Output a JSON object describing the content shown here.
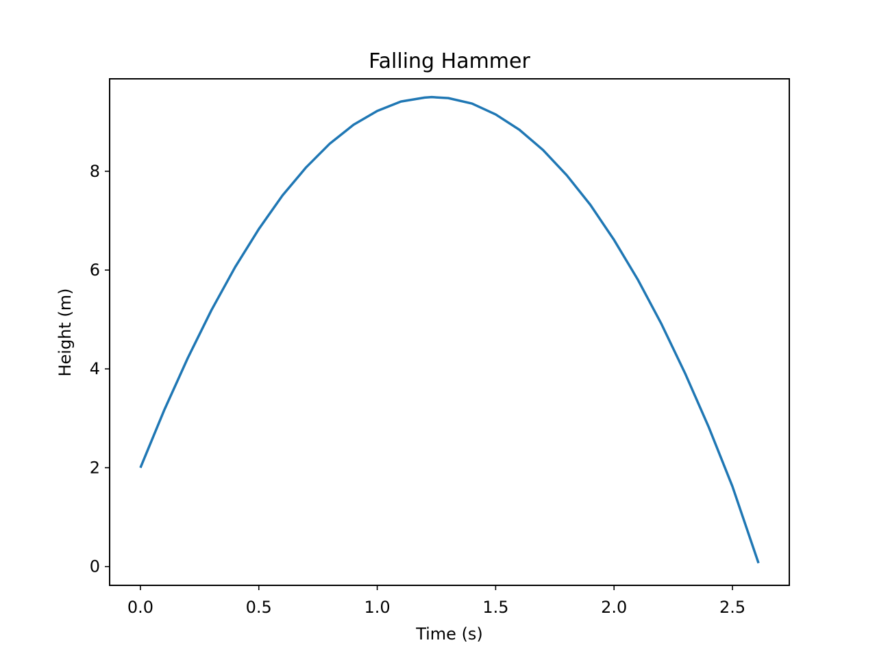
{
  "chart_data": {
    "type": "line",
    "title": "Falling Hammer",
    "xlabel": "Time (s)",
    "ylabel": "Height (m)",
    "xlim": [
      -0.13,
      2.74
    ],
    "ylim": [
      -0.38,
      9.87
    ],
    "xticks": [
      {
        "value": 0.0,
        "label": "0.0"
      },
      {
        "value": 0.5,
        "label": "0.5"
      },
      {
        "value": 1.0,
        "label": "1.0"
      },
      {
        "value": 1.5,
        "label": "1.5"
      },
      {
        "value": 2.0,
        "label": "2.0"
      },
      {
        "value": 2.5,
        "label": "2.5"
      }
    ],
    "yticks": [
      {
        "value": 0,
        "label": "0"
      },
      {
        "value": 2,
        "label": "2"
      },
      {
        "value": 4,
        "label": "4"
      },
      {
        "value": 6,
        "label": "6"
      },
      {
        "value": 8,
        "label": "8"
      }
    ],
    "grid": false,
    "series": [
      {
        "color": "#1f77b4",
        "x": [
          0.0,
          0.1,
          0.2,
          0.3,
          0.4,
          0.5,
          0.6,
          0.7,
          0.8,
          0.9,
          1.0,
          1.1,
          1.2,
          1.23,
          1.3,
          1.4,
          1.5,
          1.6,
          1.7,
          1.8,
          1.9,
          2.0,
          2.1,
          2.2,
          2.3,
          2.4,
          2.5,
          2.61
        ],
        "y": [
          2.0,
          3.16,
          4.22,
          5.19,
          6.06,
          6.83,
          7.51,
          8.08,
          8.56,
          8.94,
          9.22,
          9.41,
          9.49,
          9.5,
          9.48,
          9.37,
          9.15,
          8.84,
          8.43,
          7.92,
          7.32,
          6.61,
          5.81,
          4.91,
          3.91,
          2.82,
          1.62,
          0.07
        ]
      }
    ]
  }
}
